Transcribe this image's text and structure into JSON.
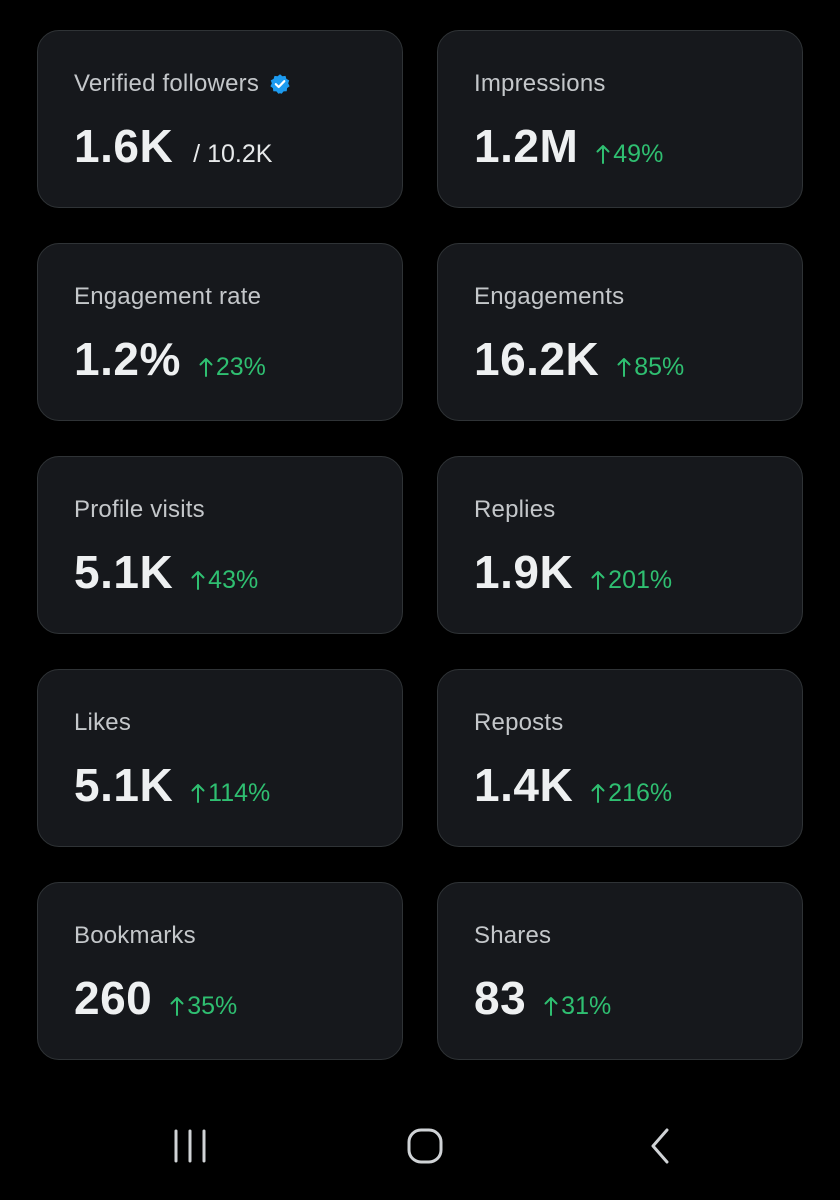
{
  "colors": {
    "background": "#000000",
    "card_background": "#16181c",
    "card_border": "#2f3336",
    "positive": "#2fbf71",
    "verified_badge": "#1d9bf0"
  },
  "cards": [
    {
      "label": "Verified followers",
      "value": "1.6K",
      "total": "/ 10.2K",
      "icon": "verified-badge-icon"
    },
    {
      "label": "Impressions",
      "value": "1.2M",
      "delta": "49%"
    },
    {
      "label": "Engagement rate",
      "value": "1.2%",
      "delta": "23%"
    },
    {
      "label": "Engagements",
      "value": "16.2K",
      "delta": "85%"
    },
    {
      "label": "Profile visits",
      "value": "5.1K",
      "delta": "43%"
    },
    {
      "label": "Replies",
      "value": "1.9K",
      "delta": "201%"
    },
    {
      "label": "Likes",
      "value": "5.1K",
      "delta": "114%"
    },
    {
      "label": "Reposts",
      "value": "1.4K",
      "delta": "216%"
    },
    {
      "label": "Bookmarks",
      "value": "260",
      "delta": "35%"
    },
    {
      "label": "Shares",
      "value": "83",
      "delta": "31%"
    }
  ],
  "navbar": {
    "items": [
      "recent-apps-icon",
      "home-icon",
      "back-icon"
    ]
  }
}
